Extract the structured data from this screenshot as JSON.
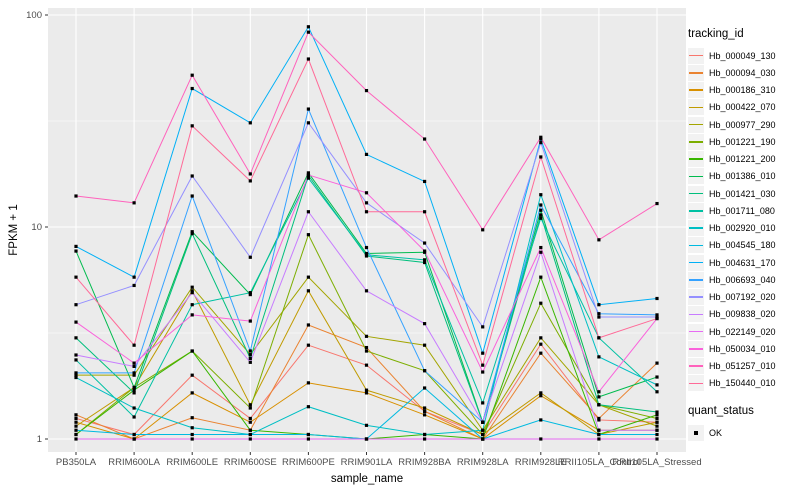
{
  "chart_data": {
    "type": "line",
    "xlabel": "sample_name",
    "ylabel": "FPKM + 1",
    "yscale": "log10",
    "ylim": [
      1,
      100
    ],
    "yticks": [
      1,
      10,
      100
    ],
    "yticks_minor": [
      3.162,
      31.62
    ],
    "grid": true,
    "panel_bg": "#EBEBEB",
    "grid_color": "#FFFFFF",
    "tick_label_color": "#4D4D4D",
    "point_marker": {
      "shape": "square",
      "color": "#000000"
    },
    "legend": {
      "position": "right",
      "color_title": "tracking_id",
      "shape_title": "quant_status",
      "shape_items": [
        {
          "label": "OK"
        }
      ]
    },
    "categories": [
      "PB350LA",
      "RRIM600LA",
      "RRIM600LE",
      "RRIM600SE",
      "RRIM600PE",
      "RRIM901LA",
      "RRIM928BA",
      "RRIM928LA",
      "RRIM928LE",
      "RRII105LA_Control",
      "RRII105LA_Stressed"
    ],
    "series": [
      {
        "name": "Hb_000049_130",
        "color": "#F8766D",
        "values": [
          1.25,
          1.05,
          2.0,
          1.25,
          2.77,
          2.23,
          1.35,
          1.05,
          2.8,
          1.23,
          1.2
        ]
      },
      {
        "name": "Hb_000094_030",
        "color": "#EA8331",
        "values": [
          1.3,
          1.0,
          1.26,
          1.1,
          3.45,
          2.7,
          1.35,
          1.0,
          2.54,
          1.25,
          2.28
        ]
      },
      {
        "name": "Hb_000186_310",
        "color": "#D89000",
        "values": [
          1.2,
          1.0,
          1.65,
          1.2,
          1.84,
          1.65,
          1.3,
          1.0,
          1.6,
          1.1,
          1.1
        ]
      },
      {
        "name": "Hb_000422_070",
        "color": "#C09B00",
        "values": [
          1.15,
          1.75,
          5.0,
          1.45,
          5.0,
          1.7,
          1.4,
          1.05,
          1.65,
          1.05,
          1.2
        ]
      },
      {
        "name": "Hb_000977_290",
        "color": "#A3A500",
        "values": [
          2.0,
          2.0,
          5.2,
          2.5,
          5.8,
          3.05,
          2.77,
          1.1,
          3.0,
          1.45,
          1.15
        ]
      },
      {
        "name": "Hb_001221_190",
        "color": "#7CAE00",
        "values": [
          1.05,
          1.75,
          2.6,
          1.4,
          9.2,
          2.6,
          2.1,
          1.05,
          4.37,
          1.45,
          1.25
        ]
      },
      {
        "name": "Hb_001221_200",
        "color": "#39B600",
        "values": [
          1.05,
          1.7,
          2.6,
          1.1,
          1.05,
          1.0,
          1.05,
          1.0,
          5.8,
          1.05,
          1.3
        ]
      },
      {
        "name": "Hb_001386_010",
        "color": "#00BB4E",
        "values": [
          7.7,
          1.75,
          9.5,
          4.8,
          18.0,
          7.5,
          7.6,
          1.2,
          12.0,
          1.58,
          1.96
        ]
      },
      {
        "name": "Hb_001421_030",
        "color": "#00BF7D",
        "values": [
          3.0,
          1.65,
          9.3,
          2.4,
          17.5,
          7.3,
          6.8,
          1.2,
          11.4,
          1.45,
          1.34
        ]
      },
      {
        "name": "Hb_001711_080",
        "color": "#00C1A3",
        "values": [
          2.36,
          1.27,
          4.3,
          4.9,
          17.0,
          7.4,
          7.0,
          1.48,
          11.0,
          3.0,
          1.67
        ]
      },
      {
        "name": "Hb_002920_010",
        "color": "#00BFC4",
        "values": [
          1.95,
          1.4,
          1.13,
          1.05,
          1.42,
          1.16,
          1.05,
          1.1,
          14.2,
          2.44,
          1.8
        ]
      },
      {
        "name": "Hb_004545_180",
        "color": "#00BAE0",
        "values": [
          1.1,
          1.05,
          1.05,
          1.05,
          1.05,
          1.0,
          1.74,
          1.0,
          1.23,
          1.05,
          1.05
        ]
      },
      {
        "name": "Hb_004631_170",
        "color": "#00B0F6",
        "values": [
          8.1,
          5.8,
          45.0,
          31.0,
          88.0,
          22.0,
          16.4,
          2.54,
          26.0,
          4.3,
          4.6
        ]
      },
      {
        "name": "Hb_006693_040",
        "color": "#35A2FF",
        "values": [
          2.05,
          2.05,
          14.0,
          2.6,
          36.0,
          8.0,
          2.1,
          1.2,
          12.7,
          3.9,
          3.85
        ]
      },
      {
        "name": "Hb_007192_020",
        "color": "#9590FF",
        "values": [
          4.3,
          5.3,
          17.4,
          7.2,
          31.0,
          13.0,
          8.4,
          3.38,
          25.0,
          3.76,
          3.76
        ]
      },
      {
        "name": "Hb_009838_020",
        "color": "#C77CFF",
        "values": [
          2.49,
          2.2,
          4.9,
          2.3,
          11.8,
          5.0,
          3.5,
          1.2,
          7.6,
          1.1,
          1.1
        ]
      },
      {
        "name": "Hb_022149_020",
        "color": "#E76BF3",
        "values": [
          1.0,
          1.0,
          1.0,
          1.0,
          1.0,
          1.0,
          1.0,
          1.0,
          1.0,
          1.0,
          1.0
        ]
      },
      {
        "name": "Hb_050034_010",
        "color": "#FA62DB",
        "values": [
          3.56,
          2.28,
          3.85,
          3.6,
          17.6,
          14.5,
          7.7,
          2.07,
          8.0,
          1.67,
          3.7
        ]
      },
      {
        "name": "Hb_051257_010",
        "color": "#FF62BC",
        "values": [
          14.0,
          13.0,
          52.0,
          17.8,
          83.0,
          44.0,
          26.0,
          9.7,
          26.5,
          8.7,
          12.9
        ]
      },
      {
        "name": "Hb_150440_010",
        "color": "#FF6A98",
        "values": [
          5.8,
          2.77,
          30.0,
          16.5,
          62.0,
          11.8,
          11.8,
          2.23,
          21.4,
          3.0,
          3.7
        ]
      }
    ]
  }
}
